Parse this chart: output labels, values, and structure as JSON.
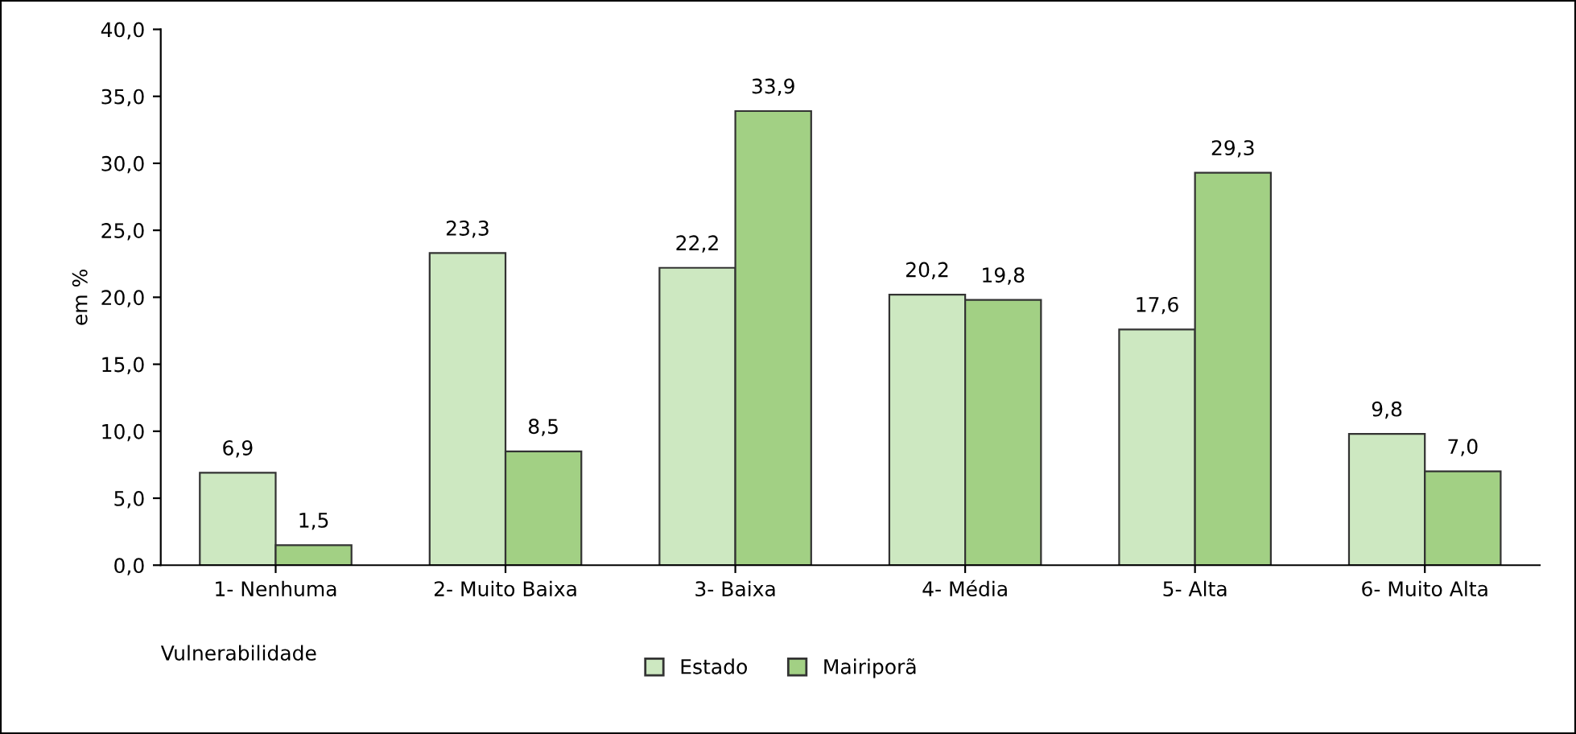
{
  "chart_data": {
    "type": "bar",
    "categories": [
      "1- Nenhuma",
      "2- Muito Baixa",
      "3- Baixa",
      "4- Média",
      "5- Alta",
      "6- Muito Alta"
    ],
    "series": [
      {
        "name": "Estado",
        "color": "#cde8c1",
        "values": [
          6.9,
          23.3,
          22.2,
          20.2,
          17.6,
          9.8
        ],
        "value_labels": [
          "6,9",
          "23,3",
          "22,2",
          "20,2",
          "17,6",
          "9,8"
        ]
      },
      {
        "name": "Mairiporã",
        "color": "#a2d084",
        "values": [
          1.5,
          8.5,
          33.9,
          19.8,
          29.3,
          7.0
        ],
        "value_labels": [
          "1,5",
          "8,5",
          "33,9",
          "19,8",
          "29,3",
          "7,0"
        ]
      }
    ],
    "xlabel": "Vulnerabilidade",
    "ylabel": "em %",
    "ylim": [
      0,
      40
    ],
    "yticks": [
      {
        "value": 0,
        "label": "0,0"
      },
      {
        "value": 5,
        "label": "5,0"
      },
      {
        "value": 10,
        "label": "10,0"
      },
      {
        "value": 15,
        "label": "15,0"
      },
      {
        "value": 20,
        "label": "20,0"
      },
      {
        "value": 25,
        "label": "25,0"
      },
      {
        "value": 30,
        "label": "30,0"
      },
      {
        "value": 35,
        "label": "35,0"
      },
      {
        "value": 40,
        "label": "40,0"
      }
    ],
    "grid": false,
    "legend": "bottom"
  }
}
